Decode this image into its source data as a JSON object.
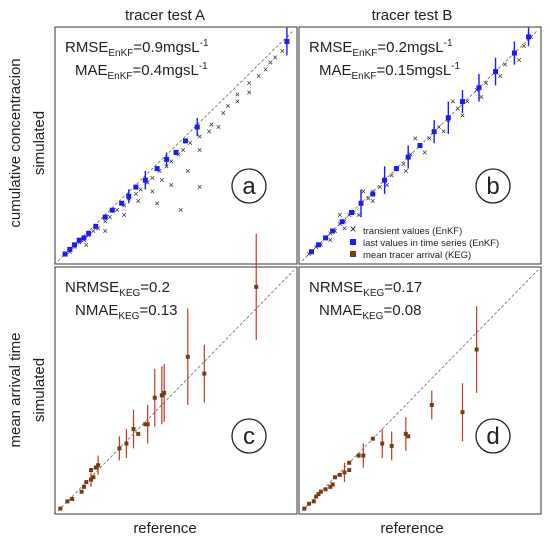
{
  "figure": {
    "col_titles": [
      "tracer test A",
      "tracer test B"
    ],
    "row_labels": [
      {
        "category": "cumulative concentracion",
        "sub": "simulated"
      },
      {
        "category": "mean arrival time",
        "sub": "simulated"
      }
    ],
    "x_label": "reference"
  },
  "legend": {
    "placement": "bottom-right of panel b",
    "items": [
      {
        "symbol": "cross",
        "color": "#222222",
        "label": "transient values (EnKF)"
      },
      {
        "symbol": "square",
        "color": "#1a1aff",
        "label": "last values in time series (EnKF)"
      },
      {
        "symbol": "square",
        "color": "#7a3b10",
        "label": "mean tracer arrival (KEG)"
      }
    ]
  },
  "colors": {
    "enkf_last": "#1a1aff",
    "enkf_transient": "#222222",
    "keg": "#7a3b10",
    "keg_bar": "#c0392b",
    "diagonal": "#555555"
  },
  "chart_data": [
    {
      "id": "a",
      "type": "scatter",
      "panel_letter": "a",
      "grid": false,
      "xlim": [
        0,
        1
      ],
      "ylim": [
        0,
        1
      ],
      "metrics": [
        {
          "prefix": "RMSE",
          "sub": "EnKF",
          "value": "=0.9mgsL",
          "sup": "-1"
        },
        {
          "prefix": "MAE",
          "sub": "EnKF",
          "value": "=0.4mgsL",
          "sup": "-1"
        }
      ],
      "series": [
        {
          "kind": "transient",
          "points": [
            [
              0.03,
              0.03
            ],
            [
              0.05,
              0.04
            ],
            [
              0.07,
              0.06
            ],
            [
              0.09,
              0.08
            ],
            [
              0.11,
              0.09
            ],
            [
              0.13,
              0.11
            ],
            [
              0.15,
              0.13
            ],
            [
              0.17,
              0.14
            ],
            [
              0.2,
              0.17
            ],
            [
              0.22,
              0.19
            ],
            [
              0.25,
              0.22
            ],
            [
              0.28,
              0.24
            ],
            [
              0.3,
              0.27
            ],
            [
              0.33,
              0.29
            ],
            [
              0.35,
              0.31
            ],
            [
              0.38,
              0.34
            ],
            [
              0.4,
              0.36
            ],
            [
              0.43,
              0.39
            ],
            [
              0.46,
              0.41
            ],
            [
              0.48,
              0.43
            ],
            [
              0.51,
              0.46
            ],
            [
              0.53,
              0.48
            ],
            [
              0.56,
              0.51
            ],
            [
              0.6,
              0.54
            ],
            [
              0.65,
              0.59
            ],
            [
              0.7,
              0.64
            ],
            [
              0.76,
              0.72
            ],
            [
              0.81,
              0.77
            ],
            [
              0.85,
              0.8
            ],
            [
              0.88,
              0.83
            ],
            [
              0.9,
              0.86
            ],
            [
              0.92,
              0.88
            ],
            [
              0.95,
              0.91
            ],
            [
              0.12,
              0.07
            ],
            [
              0.2,
              0.13
            ],
            [
              0.28,
              0.2
            ],
            [
              0.34,
              0.26
            ],
            [
              0.4,
              0.3
            ],
            [
              0.44,
              0.35
            ],
            [
              0.55,
              0.39
            ],
            [
              0.6,
              0.48
            ],
            [
              0.64,
              0.56
            ],
            [
              0.68,
              0.58
            ],
            [
              0.72,
              0.67
            ],
            [
              0.76,
              0.69
            ],
            [
              0.81,
              0.73
            ],
            [
              0.42,
              0.25
            ],
            [
              0.48,
              0.33
            ],
            [
              0.6,
              0.32
            ],
            [
              0.52,
              0.22
            ]
          ]
        },
        {
          "kind": "last",
          "points": [
            [
              0.03,
              0.03
            ],
            [
              0.05,
              0.05
            ],
            [
              0.07,
              0.07
            ],
            [
              0.09,
              0.09
            ],
            [
              0.11,
              0.1
            ],
            [
              0.13,
              0.12
            ],
            [
              0.16,
              0.15
            ],
            [
              0.2,
              0.19
            ],
            [
              0.23,
              0.22
            ],
            [
              0.27,
              0.25
            ],
            [
              0.3,
              0.28
            ],
            [
              0.33,
              0.32
            ],
            [
              0.37,
              0.35
            ],
            [
              0.42,
              0.4
            ],
            [
              0.46,
              0.44
            ],
            [
              0.5,
              0.47
            ],
            [
              0.54,
              0.52
            ],
            [
              0.59,
              0.58
            ],
            [
              0.97,
              0.95
            ]
          ],
          "errors": [
            [
              0.3,
              0.03
            ],
            [
              0.37,
              0.04
            ],
            [
              0.46,
              0.03
            ],
            [
              0.59,
              0.04
            ],
            [
              0.97,
              0.06
            ]
          ]
        }
      ]
    },
    {
      "id": "b",
      "type": "scatter",
      "panel_letter": "b",
      "grid": false,
      "xlim": [
        0,
        1
      ],
      "ylim": [
        0,
        1
      ],
      "metrics": [
        {
          "prefix": "RMSE",
          "sub": "EnKF",
          "value": "=0.2mgsL",
          "sup": "-1"
        },
        {
          "prefix": "MAE",
          "sub": "EnKF",
          "value": "=0.15mgsL",
          "sup": "-1"
        }
      ],
      "series": [
        {
          "kind": "transient",
          "points": [
            [
              0.03,
              0.03
            ],
            [
              0.06,
              0.06
            ],
            [
              0.08,
              0.07
            ],
            [
              0.1,
              0.1
            ],
            [
              0.12,
              0.12
            ],
            [
              0.14,
              0.13
            ],
            [
              0.16,
              0.16
            ],
            [
              0.18,
              0.17
            ],
            [
              0.2,
              0.2
            ],
            [
              0.22,
              0.21
            ],
            [
              0.25,
              0.25
            ],
            [
              0.28,
              0.27
            ],
            [
              0.3,
              0.3
            ],
            [
              0.33,
              0.32
            ],
            [
              0.35,
              0.35
            ],
            [
              0.38,
              0.37
            ],
            [
              0.4,
              0.4
            ],
            [
              0.43,
              0.42
            ],
            [
              0.46,
              0.46
            ],
            [
              0.5,
              0.5
            ],
            [
              0.54,
              0.53
            ],
            [
              0.58,
              0.58
            ],
            [
              0.62,
              0.61
            ],
            [
              0.66,
              0.66
            ],
            [
              0.7,
              0.69
            ],
            [
              0.74,
              0.74
            ],
            [
              0.78,
              0.77
            ],
            [
              0.82,
              0.82
            ],
            [
              0.86,
              0.85
            ],
            [
              0.9,
              0.9
            ],
            [
              0.94,
              0.93
            ],
            [
              0.97,
              0.97
            ],
            [
              0.12,
              0.09
            ],
            [
              0.18,
              0.14
            ],
            [
              0.24,
              0.2
            ],
            [
              0.3,
              0.26
            ],
            [
              0.36,
              0.33
            ],
            [
              0.44,
              0.39
            ],
            [
              0.52,
              0.47
            ],
            [
              0.6,
              0.56
            ],
            [
              0.68,
              0.63
            ],
            [
              0.76,
              0.71
            ],
            [
              0.84,
              0.8
            ],
            [
              0.92,
              0.87
            ],
            [
              0.16,
              0.2
            ],
            [
              0.26,
              0.3
            ],
            [
              0.48,
              0.53
            ],
            [
              0.64,
              0.69
            ]
          ]
        },
        {
          "kind": "last",
          "points": [
            [
              0.04,
              0.04
            ],
            [
              0.07,
              0.07
            ],
            [
              0.1,
              0.1
            ],
            [
              0.13,
              0.13
            ],
            [
              0.17,
              0.17
            ],
            [
              0.21,
              0.21
            ],
            [
              0.25,
              0.25
            ],
            [
              0.3,
              0.29
            ],
            [
              0.35,
              0.35
            ],
            [
              0.4,
              0.4
            ],
            [
              0.45,
              0.45
            ],
            [
              0.5,
              0.5
            ],
            [
              0.56,
              0.56
            ],
            [
              0.62,
              0.62
            ],
            [
              0.68,
              0.69
            ],
            [
              0.75,
              0.75
            ],
            [
              0.82,
              0.82
            ],
            [
              0.9,
              0.9
            ],
            [
              0.96,
              0.97
            ]
          ],
          "errors": [
            [
              0.25,
              0.06
            ],
            [
              0.35,
              0.06
            ],
            [
              0.45,
              0.05
            ],
            [
              0.56,
              0.05
            ],
            [
              0.62,
              0.07
            ],
            [
              0.68,
              0.05
            ],
            [
              0.75,
              0.06
            ],
            [
              0.82,
              0.06
            ],
            [
              0.9,
              0.05
            ],
            [
              0.96,
              0.04
            ]
          ]
        }
      ]
    },
    {
      "id": "c",
      "type": "scatter",
      "panel_letter": "c",
      "grid": false,
      "xlim": [
        0,
        1
      ],
      "ylim": [
        0,
        1
      ],
      "metrics": [
        {
          "prefix": "NRMSE",
          "sub": "KEG",
          "value": "=0.2",
          "sup": ""
        },
        {
          "prefix": "NMAE",
          "sub": "KEG",
          "value": "=0.13",
          "sup": ""
        }
      ],
      "series": [
        {
          "kind": "keg",
          "points": [
            [
              0.01,
              0.01
            ],
            [
              0.04,
              0.04
            ],
            [
              0.06,
              0.05
            ],
            [
              0.1,
              0.08
            ],
            [
              0.11,
              0.1
            ],
            [
              0.12,
              0.12
            ],
            [
              0.14,
              0.13
            ],
            [
              0.15,
              0.14
            ],
            [
              0.14,
              0.17
            ],
            [
              0.16,
              0.18
            ],
            [
              0.17,
              0.19
            ],
            [
              0.26,
              0.26
            ],
            [
              0.29,
              0.28
            ],
            [
              0.32,
              0.34
            ],
            [
              0.34,
              0.32
            ],
            [
              0.37,
              0.36
            ],
            [
              0.38,
              0.36
            ],
            [
              0.44,
              0.48
            ],
            [
              0.45,
              0.49
            ],
            [
              0.41,
              0.47
            ],
            [
              0.55,
              0.64
            ],
            [
              0.62,
              0.57
            ],
            [
              0.84,
              0.93
            ]
          ],
          "errors": [
            [
              0.14,
              0.03
            ],
            [
              0.17,
              0.04
            ],
            [
              0.26,
              0.05
            ],
            [
              0.29,
              0.06
            ],
            [
              0.32,
              0.08
            ],
            [
              0.38,
              0.08
            ],
            [
              0.41,
              0.12
            ],
            [
              0.44,
              0.12
            ],
            [
              0.45,
              0.12
            ],
            [
              0.55,
              0.2
            ],
            [
              0.62,
              0.12
            ],
            [
              0.84,
              0.22
            ]
          ]
        }
      ]
    },
    {
      "id": "d",
      "type": "scatter",
      "panel_letter": "d",
      "grid": false,
      "xlim": [
        0,
        1
      ],
      "ylim": [
        0,
        1
      ],
      "metrics": [
        {
          "prefix": "NRMSE",
          "sub": "KEG",
          "value": "=0.17",
          "sup": ""
        },
        {
          "prefix": "NMAE",
          "sub": "KEG",
          "value": "=0.08",
          "sup": ""
        }
      ],
      "series": [
        {
          "kind": "keg",
          "points": [
            [
              0.01,
              0.01
            ],
            [
              0.03,
              0.03
            ],
            [
              0.05,
              0.04
            ],
            [
              0.06,
              0.06
            ],
            [
              0.07,
              0.07
            ],
            [
              0.08,
              0.08
            ],
            [
              0.1,
              0.09
            ],
            [
              0.12,
              0.1
            ],
            [
              0.13,
              0.11
            ],
            [
              0.14,
              0.14
            ],
            [
              0.16,
              0.15
            ],
            [
              0.18,
              0.16
            ],
            [
              0.2,
              0.17
            ],
            [
              0.2,
              0.2
            ],
            [
              0.24,
              0.23
            ],
            [
              0.26,
              0.23
            ],
            [
              0.3,
              0.3
            ],
            [
              0.34,
              0.28
            ],
            [
              0.38,
              0.27
            ],
            [
              0.44,
              0.32
            ],
            [
              0.45,
              0.31
            ],
            [
              0.55,
              0.44
            ],
            [
              0.68,
              0.41
            ],
            [
              0.74,
              0.67
            ]
          ],
          "errors": [
            [
              0.18,
              0.04
            ],
            [
              0.26,
              0.05
            ],
            [
              0.34,
              0.06
            ],
            [
              0.38,
              0.06
            ],
            [
              0.44,
              0.07
            ],
            [
              0.55,
              0.06
            ],
            [
              0.68,
              0.12
            ],
            [
              0.74,
              0.18
            ]
          ]
        }
      ]
    }
  ]
}
